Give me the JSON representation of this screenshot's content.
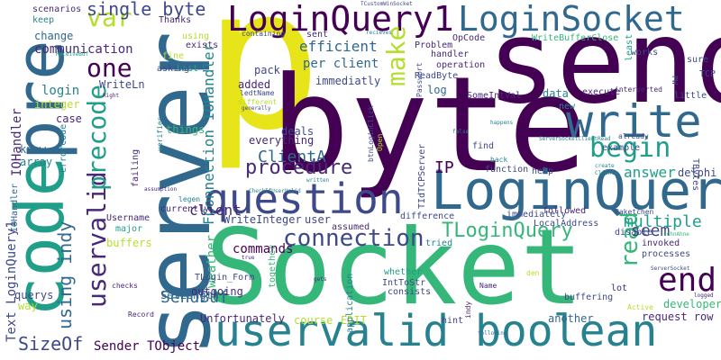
{
  "background": "#ffffff",
  "palette": {
    "yellow": "#e7e419",
    "lime": "#b5de2b",
    "green": "#6ece58",
    "teal_green": "#35b779",
    "teal": "#1f9e89",
    "cyan_blue": "#26828e",
    "blue": "#31688e",
    "indigo": "#3e4989",
    "purple": "#482878",
    "dark_purple": "#440154"
  },
  "words": [
    "p",
    "send",
    "byte",
    "Socket",
    "server",
    "code",
    "pre",
    "LoginQuery",
    "uservalid boolean",
    "LoginQuery1",
    "LoginSocket",
    "write",
    "question",
    "begin",
    "procedure",
    "connection",
    "end",
    "uservalid",
    "precode",
    "var",
    "make",
    "one",
    "single byte",
    "TLoginQuery",
    "read",
    "SendBuf",
    "SizeOf",
    "using indy",
    "ClientA",
    "IP",
    "seem",
    "multiple",
    "answer",
    "client",
    "efficient",
    "per client",
    "communication",
    "change",
    "login",
    "integer",
    "WriteLn",
    "IOHandler",
    "FConnection IOHandler",
    "Text LoginQuery1",
    "commands",
    "weather",
    "Unfortunately",
    "course",
    "EDIT",
    "another",
    "request row",
    "developer",
    "Sender TObject",
    "SetLength",
    "outgoing",
    "TLogin_Form",
    "WriteInteger",
    "currently",
    "Username",
    "major",
    "buffers",
    "querys",
    "way",
    "case",
    "know",
    "array",
    "errorCode",
    "things",
    "verifies",
    "everything",
    "deals",
    "sent",
    "containing",
    "Thanks",
    "using",
    "exists",
    "best",
    "asking",
    "fine",
    "keep",
    "scenarios",
    "pack",
    "added",
    "immediatly",
    "log",
    "Problem",
    "handler",
    "operation",
    "ReadByte",
    "SomeIntVal",
    "data",
    "execute",
    "little",
    "new",
    "example",
    "delphi",
    "help",
    "function",
    "find",
    "back",
    "false",
    "ServerSocketClientRead",
    "TBytes",
    "PW",
    "TCP",
    "sure",
    "works",
    "least",
    "interverted",
    "WriteBufferClose",
    "OpCode",
    "recieves",
    "TCustomWinSocket",
    "ReceiveBuf",
    "Right",
    "ledtName",
    "different",
    "generally",
    "btnLoginClick",
    "Passwort",
    "TIdTCPServer",
    "assumed",
    "difference",
    "immediately",
    "followed",
    "LocalAddress",
    "disable",
    "invoked",
    "processes",
    "Paketchen",
    "schnAhne",
    "ServerSocket",
    "logged",
    "Active",
    "buffering",
    "lot",
    "consists",
    "IntToStr",
    "Name",
    "whether",
    "tried",
    "application",
    "indy",
    "hint",
    "following",
    "gets",
    "true",
    "together",
    "Record",
    "checks",
    "assumption",
    "failing",
    "legen",
    "CheckIfUserValid",
    "written",
    "create",
    "ClientA",
    "den",
    "happens",
    "Open",
    "already",
    "IOHandler",
    "user"
  ]
}
